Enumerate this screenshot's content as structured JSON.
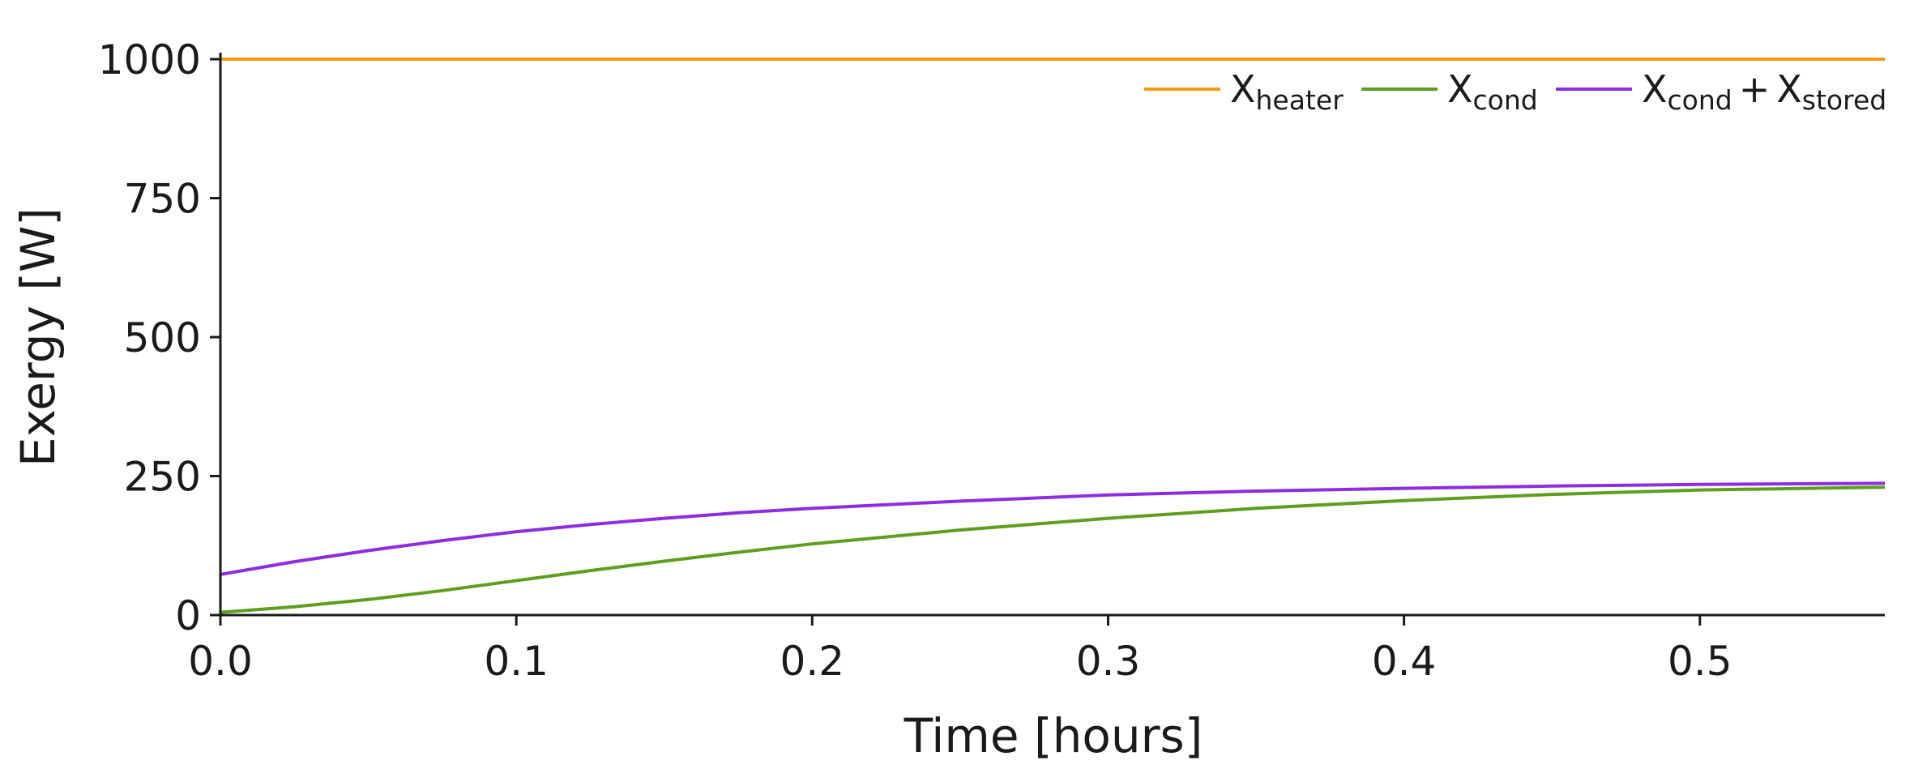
{
  "chart_data": {
    "type": "line",
    "xlabel": "Time [hours]",
    "ylabel": "Exergy [W]",
    "xlim": [
      0.0,
      0.5625
    ],
    "ylim": [
      0,
      1000
    ],
    "xticks": [
      "0.0",
      "0.1",
      "0.2",
      "0.3",
      "0.4",
      "0.5"
    ],
    "yticks": [
      "0",
      "250",
      "500",
      "750",
      "1000"
    ],
    "grid": false,
    "legend_position": "top-right",
    "series": [
      {
        "name": "X_heater",
        "label_main": "X",
        "label_sub": "heater",
        "color": "#f59a17",
        "x": [
          0.0,
          0.05,
          0.1,
          0.15,
          0.2,
          0.25,
          0.3,
          0.35,
          0.4,
          0.45,
          0.5,
          0.5625
        ],
        "y": [
          1000,
          1000,
          1000,
          1000,
          1000,
          1000,
          1000,
          1000,
          1000,
          1000,
          1000,
          1000
        ]
      },
      {
        "name": "X_cond",
        "label_main": "X",
        "label_sub": "cond",
        "color": "#5c9e1e",
        "x": [
          0.0,
          0.025,
          0.05,
          0.075,
          0.1,
          0.125,
          0.15,
          0.175,
          0.2,
          0.25,
          0.3,
          0.35,
          0.4,
          0.45,
          0.5,
          0.5625
        ],
        "y": [
          5,
          15,
          28,
          44,
          62,
          80,
          97,
          113,
          128,
          153,
          174,
          192,
          206,
          217,
          225,
          230
        ]
      },
      {
        "name": "X_cond + X_stored",
        "label_main": "X",
        "label_sub": "cond",
        "label_plus": "+",
        "label_main2": "X",
        "label_sub2": "stored",
        "color": "#8e2de0",
        "x": [
          0.0,
          0.025,
          0.05,
          0.075,
          0.1,
          0.125,
          0.15,
          0.175,
          0.2,
          0.25,
          0.3,
          0.35,
          0.4,
          0.45,
          0.5,
          0.5625
        ],
        "y": [
          73,
          96,
          116,
          134,
          150,
          163,
          174,
          184,
          192,
          205,
          216,
          223,
          228,
          232,
          235,
          237
        ]
      }
    ]
  }
}
